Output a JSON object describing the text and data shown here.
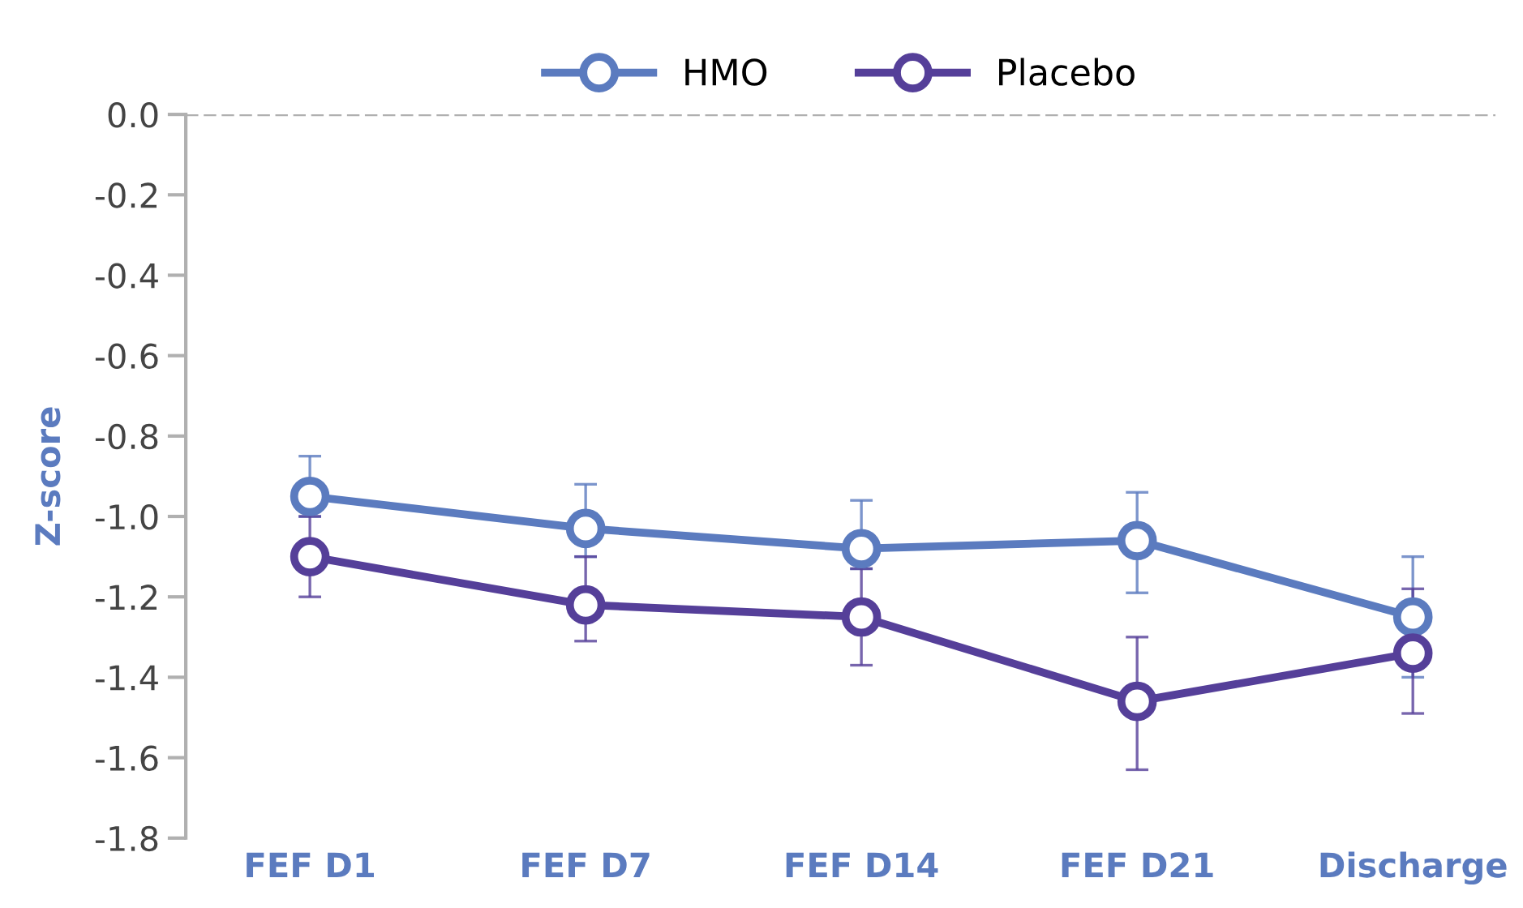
{
  "chart_data": {
    "type": "line",
    "ylabel": "Z-score",
    "categories": [
      "FEF D1",
      "FEF D7",
      "FEF D14",
      "FEF D21",
      "Discharge"
    ],
    "series": [
      {
        "name": "HMO",
        "color": "#5b7bbf",
        "values": [
          -0.95,
          -1.03,
          -1.08,
          -1.06,
          -1.25
        ],
        "errors": [
          [
            -1.0,
            -0.85
          ],
          [
            -1.1,
            -0.92
          ],
          [
            -1.13,
            -0.96
          ],
          [
            -1.19,
            -0.94
          ],
          [
            -1.4,
            -1.1
          ]
        ]
      },
      {
        "name": "Placebo",
        "color": "#553f99",
        "values": [
          -1.1,
          -1.22,
          -1.25,
          -1.46,
          -1.34
        ],
        "errors": [
          [
            -1.2,
            -1.0
          ],
          [
            -1.31,
            -1.1
          ],
          [
            -1.37,
            -1.13
          ],
          [
            -1.63,
            -1.3
          ],
          [
            -1.49,
            -1.18
          ]
        ]
      }
    ],
    "ylim": [
      -1.8,
      0.0
    ],
    "yticks": [
      {
        "value": -1.8,
        "label": "-1.8"
      },
      {
        "value": -1.6,
        "label": "-1.6"
      },
      {
        "value": -1.4,
        "label": "-1.4"
      },
      {
        "value": -1.2,
        "label": "-1.2"
      },
      {
        "value": -1.0,
        "label": "-1.0"
      },
      {
        "value": -0.8,
        "label": "-0.8"
      },
      {
        "value": -0.6,
        "label": "-0.6"
      },
      {
        "value": -0.4,
        "label": "-0.4"
      },
      {
        "value": -0.2,
        "label": "-0.2"
      },
      {
        "value": 0.0,
        "label": "0.0"
      }
    ],
    "ref_lines": [
      {
        "axis": "y",
        "value": 0.0,
        "color": "#b0b0b0",
        "line_style": "dashed"
      }
    ],
    "marker": "circle",
    "line_style": "solid",
    "grid": false,
    "legend": "top"
  }
}
